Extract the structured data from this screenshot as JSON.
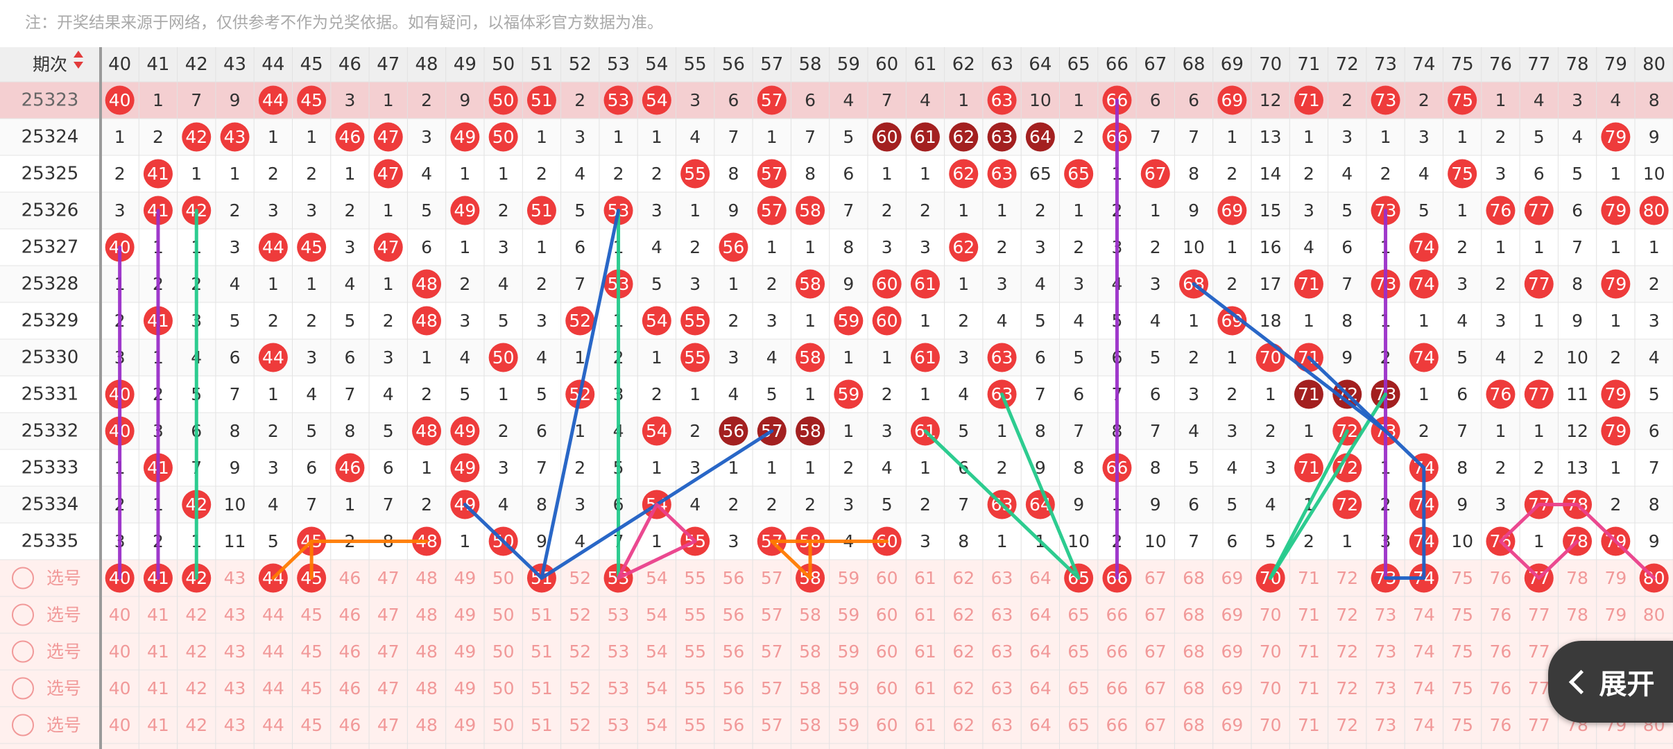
{
  "notice": "注：开奖结果来源于网络，仅供参考不作为兑奖依据。如有疑问，以福体彩官方数据为准。",
  "header_label": "期次",
  "sort_icon": "sort-up-down-icon",
  "columns": [
    40,
    41,
    42,
    43,
    44,
    45,
    46,
    47,
    48,
    49,
    50,
    51,
    52,
    53,
    54,
    55,
    56,
    57,
    58,
    59,
    60,
    61,
    62,
    63,
    64,
    65,
    66,
    67,
    68,
    69,
    70,
    71,
    72,
    73,
    74,
    75,
    76,
    77,
    78,
    79,
    80
  ],
  "draws": [
    {
      "issue": "25323",
      "highlight": true,
      "values": [
        "40",
        "1",
        "7",
        "9",
        "44",
        "45",
        "3",
        "1",
        "2",
        "9",
        "50",
        "51",
        "2",
        "53",
        "54",
        "3",
        "6",
        "57",
        "6",
        "4",
        "7",
        "4",
        "1",
        "63",
        "10",
        "1",
        "66",
        "6",
        "6",
        "69",
        "12",
        "71",
        "2",
        "73",
        "2",
        "75",
        "1",
        "4",
        "3",
        "4",
        "8"
      ]
    },
    {
      "issue": "25324",
      "values": [
        "1",
        "2",
        "42",
        "43",
        "1",
        "1",
        "46",
        "47",
        "3",
        "49",
        "50",
        "1",
        "3",
        "1",
        "1",
        "4",
        "7",
        "1",
        "7",
        "5",
        "60",
        "61",
        "62",
        "63",
        "64",
        "2",
        "66",
        "7",
        "7",
        "1",
        "13",
        "1",
        "3",
        "1",
        "3",
        "1",
        "2",
        "5",
        "4",
        "79",
        "9"
      ]
    },
    {
      "issue": "25325",
      "values": [
        "2",
        "41",
        "1",
        "1",
        "2",
        "2",
        "1",
        "47",
        "4",
        "1",
        "1",
        "2",
        "4",
        "2",
        "2",
        "55",
        "8",
        "57",
        "8",
        "6",
        "1",
        "1",
        "62",
        "63",
        "65",
        "65",
        "1",
        "67",
        "8",
        "2",
        "14",
        "2",
        "4",
        "2",
        "4",
        "75",
        "3",
        "6",
        "5",
        "1",
        "10"
      ]
    },
    {
      "issue": "25326",
      "values": [
        "3",
        "41",
        "42",
        "2",
        "3",
        "3",
        "2",
        "1",
        "5",
        "49",
        "2",
        "51",
        "5",
        "53",
        "3",
        "1",
        "9",
        "57",
        "58",
        "7",
        "2",
        "2",
        "1",
        "1",
        "2",
        "1",
        "2",
        "1",
        "9",
        "69",
        "15",
        "3",
        "5",
        "73",
        "5",
        "1",
        "76",
        "77",
        "6",
        "79",
        "80"
      ]
    },
    {
      "issue": "25327",
      "values": [
        "40",
        "1",
        "1",
        "3",
        "44",
        "45",
        "3",
        "47",
        "6",
        "1",
        "3",
        "1",
        "6",
        "1",
        "4",
        "2",
        "56",
        "1",
        "1",
        "8",
        "3",
        "3",
        "62",
        "2",
        "3",
        "2",
        "3",
        "2",
        "10",
        "1",
        "16",
        "4",
        "6",
        "1",
        "74",
        "2",
        "1",
        "1",
        "7",
        "1",
        "1"
      ]
    },
    {
      "issue": "25328",
      "values": [
        "1",
        "2",
        "2",
        "4",
        "1",
        "1",
        "4",
        "1",
        "48",
        "2",
        "4",
        "2",
        "7",
        "53",
        "5",
        "3",
        "1",
        "2",
        "58",
        "9",
        "60",
        "61",
        "1",
        "3",
        "4",
        "3",
        "4",
        "3",
        "68",
        "2",
        "17",
        "71",
        "7",
        "73",
        "74",
        "3",
        "2",
        "77",
        "8",
        "79",
        "2"
      ]
    },
    {
      "issue": "25329",
      "values": [
        "2",
        "41",
        "3",
        "5",
        "2",
        "2",
        "5",
        "2",
        "48",
        "3",
        "5",
        "3",
        "52",
        "1",
        "54",
        "55",
        "2",
        "3",
        "1",
        "59",
        "60",
        "1",
        "2",
        "4",
        "5",
        "4",
        "5",
        "4",
        "1",
        "69",
        "18",
        "1",
        "8",
        "1",
        "1",
        "4",
        "3",
        "1",
        "9",
        "1",
        "3"
      ]
    },
    {
      "issue": "25330",
      "values": [
        "3",
        "1",
        "4",
        "6",
        "44",
        "3",
        "6",
        "3",
        "1",
        "4",
        "50",
        "4",
        "1",
        "2",
        "1",
        "55",
        "3",
        "4",
        "58",
        "1",
        "1",
        "61",
        "3",
        "63",
        "6",
        "5",
        "6",
        "5",
        "2",
        "1",
        "70",
        "71",
        "9",
        "2",
        "74",
        "5",
        "4",
        "2",
        "10",
        "2",
        "4"
      ]
    },
    {
      "issue": "25331",
      "values": [
        "40",
        "2",
        "5",
        "7",
        "1",
        "4",
        "7",
        "4",
        "2",
        "5",
        "1",
        "5",
        "52",
        "3",
        "2",
        "1",
        "4",
        "5",
        "1",
        "59",
        "2",
        "1",
        "4",
        "63",
        "7",
        "6",
        "7",
        "6",
        "3",
        "2",
        "1",
        "71",
        "72",
        "73",
        "1",
        "6",
        "76",
        "77",
        "11",
        "79",
        "5"
      ]
    },
    {
      "issue": "25332",
      "values": [
        "40",
        "3",
        "6",
        "8",
        "2",
        "5",
        "8",
        "5",
        "48",
        "49",
        "2",
        "6",
        "1",
        "4",
        "54",
        "2",
        "56",
        "57",
        "58",
        "1",
        "3",
        "61",
        "5",
        "1",
        "8",
        "7",
        "8",
        "7",
        "4",
        "3",
        "2",
        "1",
        "72",
        "73",
        "2",
        "7",
        "1",
        "1",
        "12",
        "79",
        "6"
      ]
    },
    {
      "issue": "25333",
      "values": [
        "1",
        "41",
        "7",
        "9",
        "3",
        "6",
        "46",
        "6",
        "1",
        "49",
        "3",
        "7",
        "2",
        "5",
        "1",
        "3",
        "1",
        "1",
        "1",
        "2",
        "4",
        "1",
        "6",
        "2",
        "9",
        "8",
        "66",
        "8",
        "5",
        "4",
        "3",
        "71",
        "72",
        "1",
        "74",
        "8",
        "2",
        "2",
        "13",
        "1",
        "7"
      ]
    },
    {
      "issue": "25334",
      "values": [
        "2",
        "1",
        "42",
        "10",
        "4",
        "7",
        "1",
        "7",
        "2",
        "49",
        "4",
        "8",
        "3",
        "6",
        "54",
        "4",
        "2",
        "2",
        "2",
        "3",
        "5",
        "2",
        "7",
        "63",
        "64",
        "9",
        "1",
        "9",
        "6",
        "5",
        "4",
        "1",
        "72",
        "2",
        "74",
        "9",
        "3",
        "77",
        "78",
        "2",
        "8"
      ]
    },
    {
      "issue": "25335",
      "values": [
        "3",
        "2",
        "1",
        "11",
        "5",
        "45",
        "2",
        "8",
        "48",
        "1",
        "50",
        "9",
        "4",
        "7",
        "1",
        "55",
        "3",
        "57",
        "58",
        "4",
        "60",
        "3",
        "8",
        "1",
        "1",
        "10",
        "2",
        "10",
        "7",
        "6",
        "5",
        "2",
        "1",
        "3",
        "74",
        "10",
        "76",
        "1",
        "78",
        "79",
        "9"
      ]
    }
  ],
  "pick_label": "选号",
  "pick_rows": [
    {
      "selected": [
        40,
        41,
        42,
        44,
        45,
        51,
        53,
        58,
        65,
        66,
        70,
        73,
        74,
        77,
        80
      ]
    },
    {
      "selected": []
    },
    {
      "selected": []
    },
    {
      "selected": []
    },
    {
      "selected": []
    }
  ],
  "dark_balls": [
    {
      "issue": "25324",
      "numbers": [
        60,
        61,
        62,
        63,
        64
      ]
    },
    {
      "issue": "25331",
      "numbers": [
        71,
        72,
        73
      ]
    },
    {
      "issue": "25332",
      "numbers": [
        56,
        57,
        58
      ]
    }
  ],
  "expand_label": "展开",
  "expand_icon": "chevron-left-icon",
  "colors": {
    "ball_red": "#ee3b3b",
    "ball_dark": "#a32020",
    "highlight_row": "#f4cfd1",
    "pick_bg": "#fff0ee",
    "pick_text": "#f19999",
    "header_bg": "#efefef",
    "line_purple": "#9a2ec8",
    "line_green": "#22c98a",
    "line_blue": "#1e5fc4",
    "line_orange": "#ff7a00",
    "line_pink": "#ea3f8a"
  },
  "trend_lines": [
    {
      "color": "purple",
      "points": [
        [
          "40",
          "25327"
        ],
        [
          "40",
          "pick1"
        ]
      ]
    },
    {
      "color": "purple",
      "points": [
        [
          "41",
          "25326"
        ],
        [
          "41",
          "pick1"
        ]
      ]
    },
    {
      "color": "purple",
      "points": [
        [
          "66",
          "25323"
        ],
        [
          "66",
          "pick1"
        ]
      ]
    },
    {
      "color": "purple",
      "points": [
        [
          "73",
          "25326"
        ],
        [
          "73",
          "pick1"
        ]
      ]
    },
    {
      "color": "green",
      "points": [
        [
          "42",
          "25326"
        ],
        [
          "42",
          "pick1"
        ]
      ]
    },
    {
      "color": "green",
      "points": [
        [
          "53",
          "25326"
        ],
        [
          "53",
          "pick1"
        ]
      ]
    },
    {
      "color": "green",
      "points": [
        [
          "61",
          "25332"
        ],
        [
          "65",
          "pick1"
        ],
        [
          "63",
          "25331"
        ]
      ]
    },
    {
      "color": "green",
      "points": [
        [
          "70",
          "pick1"
        ],
        [
          "72",
          "25332"
        ]
      ]
    },
    {
      "color": "green",
      "points": [
        [
          "70",
          "pick1"
        ],
        [
          "73",
          "25331"
        ]
      ]
    },
    {
      "color": "blue",
      "points": [
        [
          "51",
          "pick1"
        ],
        [
          "53",
          "25326"
        ]
      ]
    },
    {
      "color": "blue",
      "points": [
        [
          "49",
          "25334"
        ],
        [
          "51",
          "pick1"
        ],
        [
          "57",
          "25332"
        ]
      ]
    },
    {
      "color": "blue",
      "points": [
        [
          "68",
          "25328"
        ],
        [
          "73",
          "25332"
        ]
      ]
    },
    {
      "color": "blue",
      "points": [
        [
          "71",
          "25330"
        ],
        [
          "74",
          "25333"
        ],
        [
          "74",
          "pick1"
        ],
        [
          "73",
          "pick1"
        ]
      ]
    },
    {
      "color": "orange",
      "points": [
        [
          "44",
          "pick1"
        ],
        [
          "45",
          "25335"
        ],
        [
          "48",
          "25335"
        ]
      ]
    },
    {
      "color": "orange",
      "points": [
        [
          "45",
          "25335"
        ],
        [
          "45",
          "pick1"
        ]
      ]
    },
    {
      "color": "orange",
      "points": [
        [
          "57",
          "25335"
        ],
        [
          "60",
          "25335"
        ]
      ]
    },
    {
      "color": "orange",
      "points": [
        [
          "57",
          "25335"
        ],
        [
          "58",
          "pick1"
        ],
        [
          "58",
          "25335"
        ]
      ]
    },
    {
      "color": "pink",
      "points": [
        [
          "53",
          "pick1"
        ],
        [
          "54",
          "25334"
        ],
        [
          "55",
          "25335"
        ],
        [
          "53",
          "pick1"
        ]
      ]
    },
    {
      "color": "pink",
      "points": [
        [
          "76",
          "25335"
        ],
        [
          "77",
          "25334"
        ],
        [
          "78",
          "25334"
        ],
        [
          "79",
          "25335"
        ],
        [
          "80",
          "pick1"
        ]
      ]
    },
    {
      "color": "pink",
      "points": [
        [
          "76",
          "25335"
        ],
        [
          "77",
          "pick1"
        ],
        [
          "78",
          "25335"
        ]
      ]
    }
  ]
}
